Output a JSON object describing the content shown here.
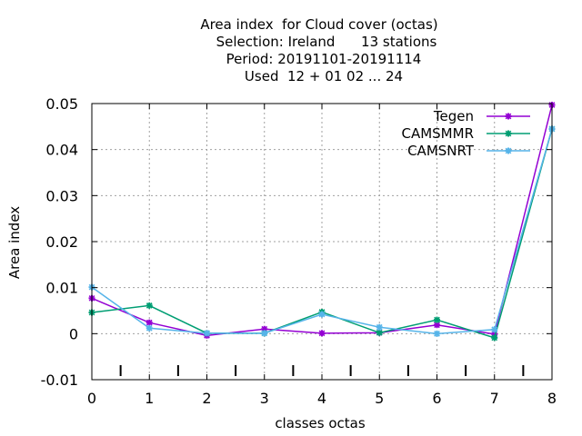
{
  "chart_data": {
    "type": "line",
    "title_lines": [
      "Area index  for Cloud cover (octas)",
      "Selection: Ireland      13 stations",
      "Period: 20191101-20191114",
      "Used  12 + 01 02 ... 24"
    ],
    "xlabel": "classes octas",
    "ylabel": "Area index",
    "x": [
      0,
      1,
      2,
      3,
      4,
      5,
      6,
      7,
      8
    ],
    "xlim": [
      0,
      8
    ],
    "ylim": [
      -0.01,
      0.05
    ],
    "x_ticks": [
      0,
      1,
      2,
      3,
      4,
      5,
      6,
      7,
      8
    ],
    "y_ticks": [
      -0.01,
      0,
      0.01,
      0.02,
      0.03,
      0.04,
      0.05
    ],
    "y_tick_labels": [
      "-0.01",
      "0",
      "0.01",
      "0.02",
      "0.03",
      "0.04",
      "0.05"
    ],
    "grid": true,
    "legend_position": "top-right",
    "series": [
      {
        "name": "Tegen",
        "color": "#9400d3",
        "values": [
          0.0077,
          0.0024,
          -0.0004,
          0.001,
          0.0001,
          0.0002,
          0.0019,
          -0.0001,
          0.0497
        ]
      },
      {
        "name": "CAMSMMR",
        "color": "#009e73",
        "values": [
          0.0046,
          0.0061,
          0.0001,
          0.0001,
          0.0047,
          0.0002,
          0.003,
          -0.0009,
          0.0445
        ]
      },
      {
        "name": "CAMSNRT",
        "color": "#56b4e9",
        "values": [
          0.0101,
          0.0012,
          0.0001,
          0.0001,
          0.0042,
          0.0014,
          0.0,
          0.0009,
          0.0445
        ]
      }
    ]
  }
}
